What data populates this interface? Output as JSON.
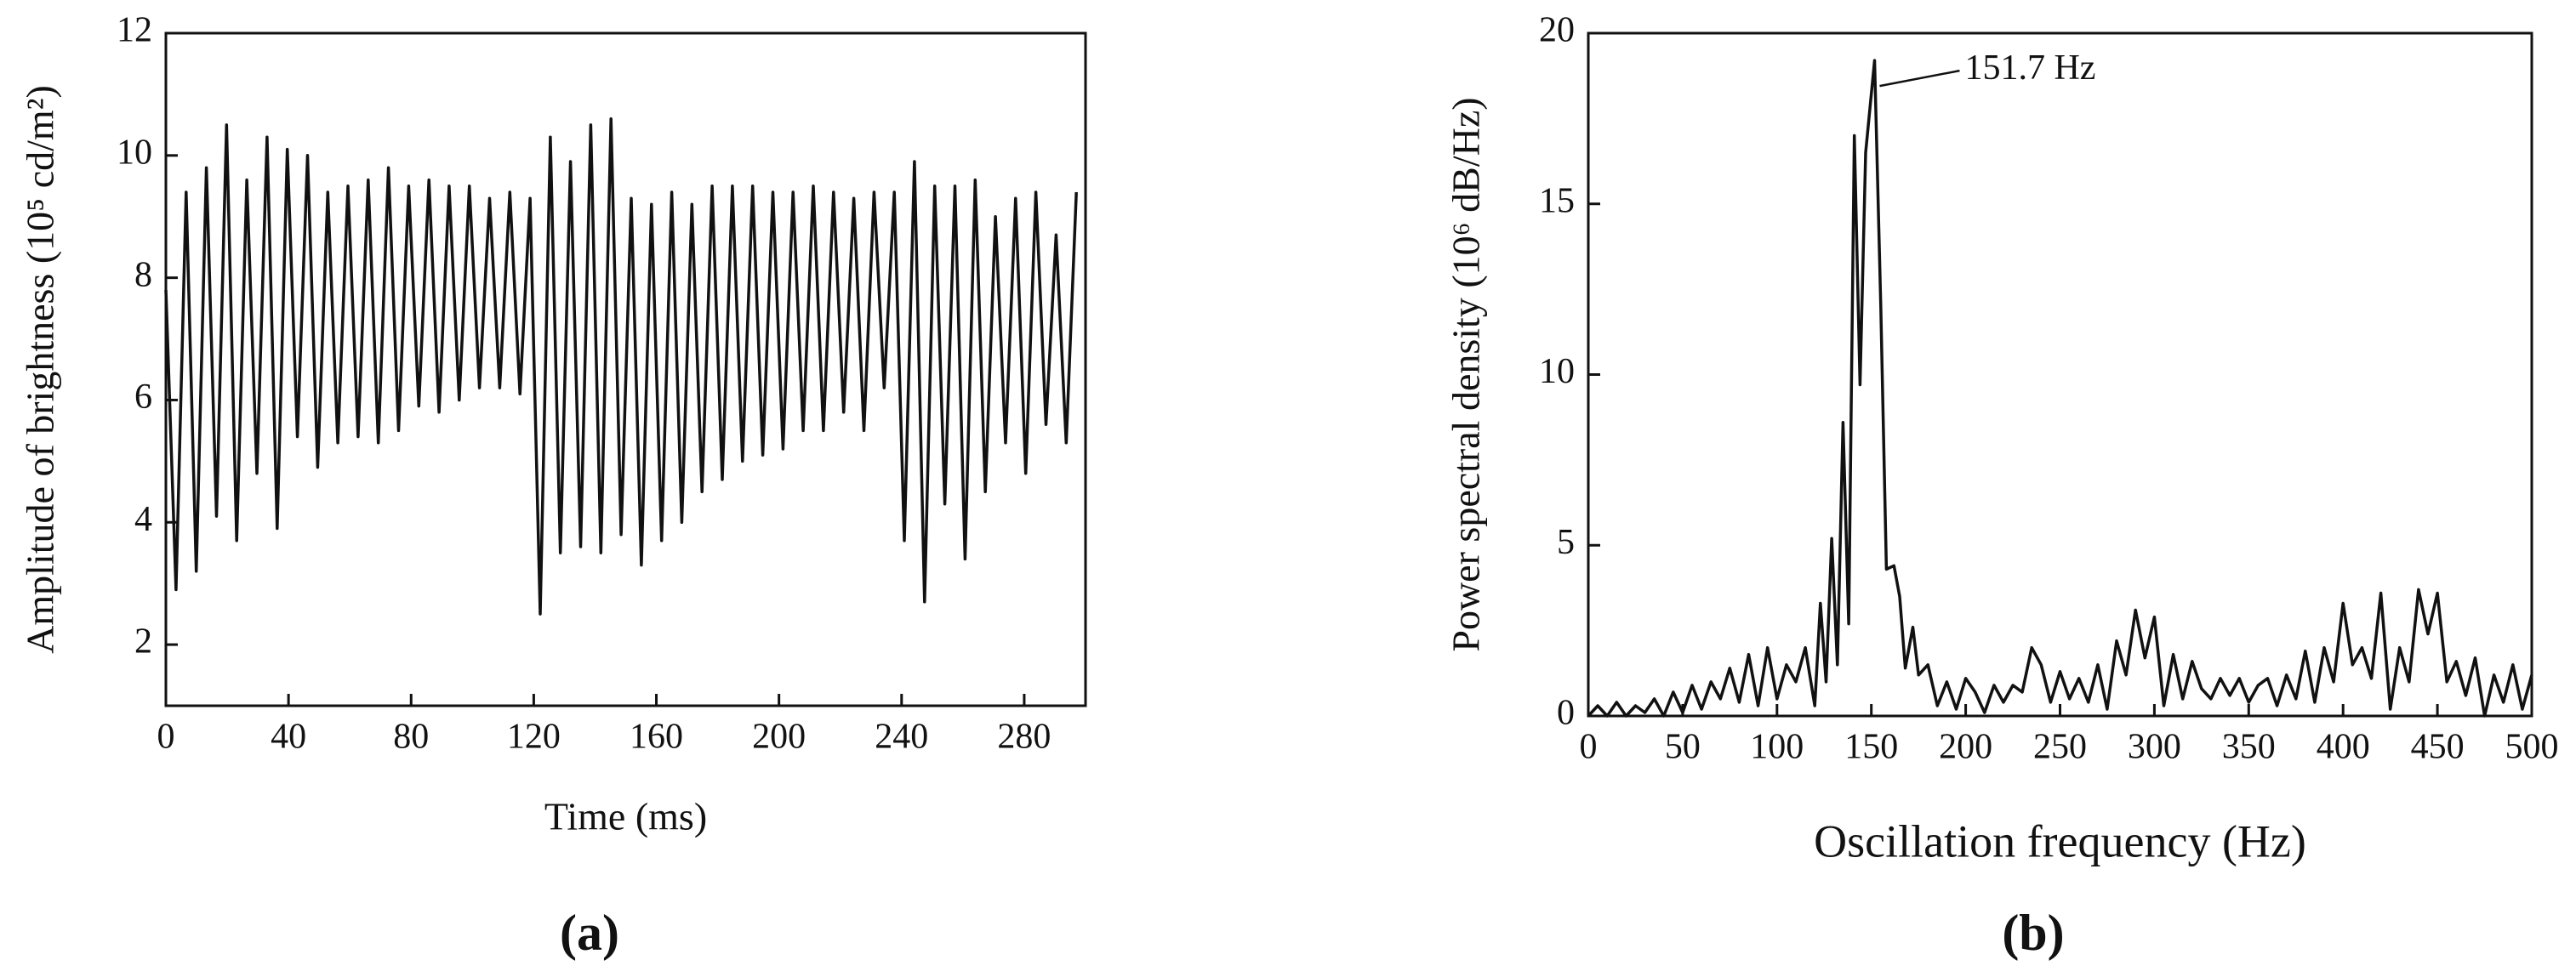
{
  "chart_data": [
    {
      "type": "line",
      "panel_label": "(a)",
      "x_label": "Time (ms)",
      "y_label": "Amplitude of brightness (10⁵ cd/m²)",
      "xlim": [
        0,
        300
      ],
      "xticks": [
        0,
        40,
        80,
        120,
        160,
        200,
        240,
        280
      ],
      "ylim": [
        1,
        12
      ],
      "yticks": [
        2,
        4,
        6,
        8,
        10,
        12
      ],
      "color": "#111111",
      "x": [
        0,
        3.3,
        6.6,
        9.9,
        13.2,
        16.5,
        19.8,
        23.1,
        26.4,
        29.7,
        33,
        36.3,
        39.6,
        42.9,
        46.2,
        49.5,
        52.8,
        56.1,
        59.4,
        62.7,
        66,
        69.3,
        72.6,
        75.9,
        79.2,
        82.5,
        85.8,
        89.1,
        92.4,
        95.7,
        99,
        102.3,
        105.6,
        108.9,
        112.2,
        115.5,
        118.8,
        122.1,
        125.4,
        128.7,
        132,
        135.3,
        138.6,
        141.9,
        145.2,
        148.5,
        151.8,
        155.1,
        158.4,
        161.7,
        165,
        168.3,
        171.6,
        174.9,
        178.2,
        181.5,
        184.8,
        188.1,
        191.4,
        194.7,
        198,
        201.3,
        204.6,
        207.9,
        211.2,
        214.5,
        217.8,
        221.1,
        224.4,
        227.7,
        231,
        234.3,
        237.6,
        240.9,
        244.2,
        247.5,
        250.8,
        254.1,
        257.4,
        260.7,
        264,
        267.3,
        270.6,
        273.9,
        277.2,
        280.5,
        283.8,
        287.1,
        290.4,
        293.7,
        297
      ],
      "values": [
        7.8,
        2.9,
        9.4,
        3.2,
        9.8,
        4.1,
        10.5,
        3.7,
        9.6,
        4.8,
        10.3,
        3.9,
        10.1,
        5.4,
        10.0,
        4.9,
        9.4,
        5.3,
        9.5,
        5.4,
        9.6,
        5.3,
        9.8,
        5.5,
        9.5,
        5.9,
        9.6,
        5.8,
        9.5,
        6.0,
        9.5,
        6.2,
        9.3,
        6.2,
        9.4,
        6.1,
        9.3,
        2.5,
        10.3,
        3.5,
        9.9,
        3.6,
        10.5,
        3.5,
        10.6,
        3.8,
        9.3,
        3.3,
        9.2,
        3.7,
        9.4,
        4.0,
        9.2,
        4.5,
        9.5,
        4.7,
        9.5,
        5.0,
        9.5,
        5.1,
        9.4,
        5.2,
        9.4,
        5.5,
        9.5,
        5.5,
        9.4,
        5.8,
        9.3,
        5.5,
        9.4,
        6.2,
        9.4,
        3.7,
        9.9,
        2.7,
        9.5,
        4.3,
        9.5,
        3.4,
        9.6,
        4.5,
        9.0,
        5.3,
        9.3,
        4.8,
        9.4,
        5.6,
        8.7,
        5.3,
        9.4
      ]
    },
    {
      "type": "line",
      "panel_label": "(b)",
      "x_label": "Oscillation frequency (Hz)",
      "y_label": "Power spectral density (10⁶ dB/Hz)",
      "annotation": "151.7 Hz",
      "xlim": [
        0,
        500
      ],
      "xticks": [
        0,
        50,
        100,
        150,
        200,
        250,
        300,
        350,
        400,
        450,
        500
      ],
      "ylim": [
        0,
        20
      ],
      "yticks": [
        0,
        5,
        10,
        15,
        20
      ],
      "color": "#111111",
      "x": [
        0,
        5,
        10,
        15,
        20,
        25,
        30,
        35,
        40,
        45,
        50,
        55,
        60,
        65,
        70,
        75,
        80,
        85,
        90,
        95,
        100,
        105,
        110,
        115,
        120,
        123,
        126,
        129,
        132,
        135,
        138,
        141,
        144,
        147,
        151.7,
        155,
        158,
        162,
        165,
        168,
        172,
        175,
        180,
        185,
        190,
        195,
        200,
        205,
        210,
        215,
        220,
        225,
        230,
        235,
        240,
        245,
        250,
        255,
        260,
        265,
        270,
        275,
        280,
        285,
        290,
        295,
        300,
        305,
        310,
        315,
        320,
        325,
        330,
        335,
        340,
        345,
        350,
        355,
        360,
        365,
        370,
        375,
        380,
        385,
        390,
        395,
        400,
        405,
        410,
        415,
        420,
        425,
        430,
        435,
        440,
        445,
        450,
        455,
        460,
        465,
        470,
        475,
        480,
        485,
        490,
        495,
        500
      ],
      "values": [
        0,
        0.3,
        0,
        0.4,
        0,
        0.3,
        0.1,
        0.5,
        0,
        0.7,
        0.1,
        0.9,
        0.2,
        1.0,
        0.5,
        1.4,
        0.4,
        1.8,
        0.3,
        2.0,
        0.5,
        1.5,
        1.0,
        2.0,
        0.3,
        3.3,
        1.0,
        5.2,
        1.5,
        8.6,
        2.7,
        17.0,
        9.7,
        16.5,
        19.2,
        12,
        4.3,
        4.4,
        3.5,
        1.4,
        2.6,
        1.2,
        1.5,
        0.3,
        1.0,
        0.2,
        1.1,
        0.7,
        0.1,
        0.9,
        0.4,
        0.9,
        0.7,
        2.0,
        1.5,
        0.4,
        1.3,
        0.5,
        1.1,
        0.4,
        1.5,
        0.2,
        2.2,
        1.2,
        3.1,
        1.7,
        2.9,
        0.3,
        1.8,
        0.5,
        1.6,
        0.8,
        0.5,
        1.1,
        0.6,
        1.1,
        0.4,
        0.9,
        1.1,
        0.3,
        1.2,
        0.5,
        1.9,
        0.4,
        2.0,
        1.0,
        3.3,
        1.5,
        2.0,
        1.1,
        3.6,
        0.2,
        2.0,
        1.0,
        3.7,
        2.4,
        3.6,
        1.0,
        1.6,
        0.6,
        1.7,
        0,
        1.2,
        0.4,
        1.5,
        0.2,
        1.2
      ]
    }
  ]
}
